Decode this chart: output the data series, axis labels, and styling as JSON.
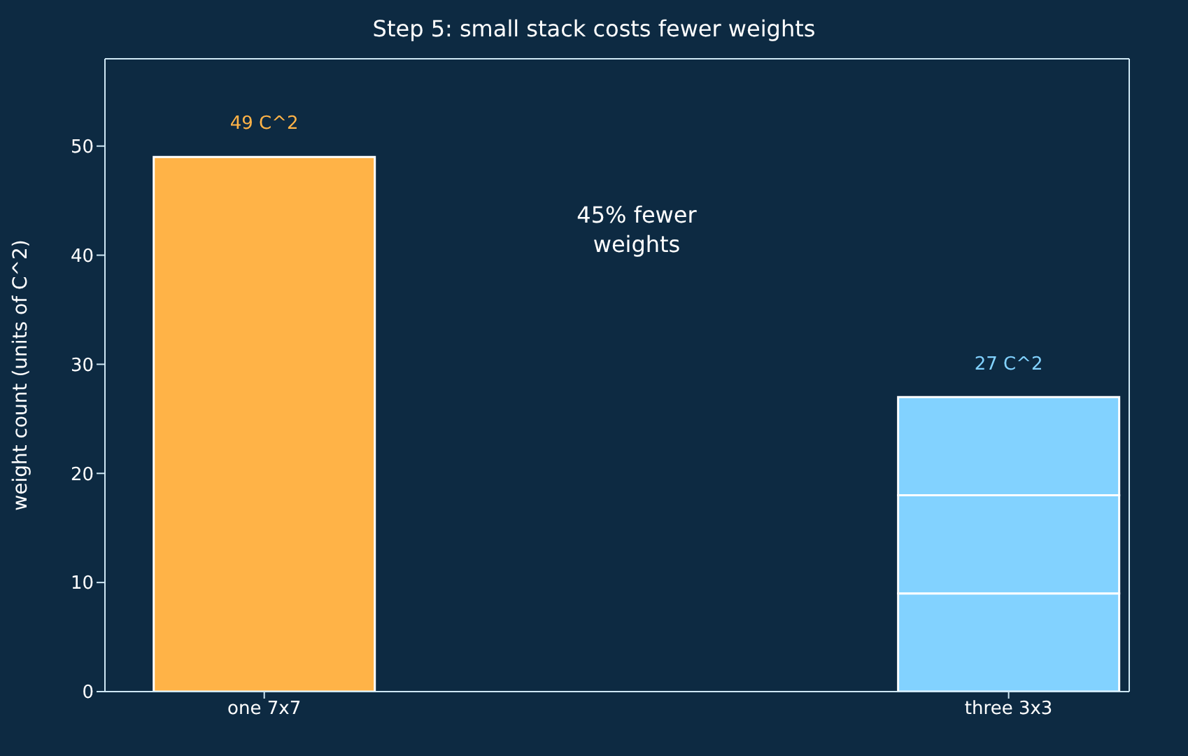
{
  "chart_data": {
    "type": "bar",
    "title": "Step 5: small stack costs fewer weights",
    "ylabel": "weight count (units of C^2)",
    "categories": [
      "one 7x7",
      "three 3x3"
    ],
    "stacked": true,
    "series": [
      {
        "colors": [
          "#ffb347",
          "#82d2ff"
        ],
        "values": [
          49,
          9
        ]
      },
      {
        "colors": [
          "#ffb347",
          "#82d2ff"
        ],
        "values": [
          null,
          9
        ]
      },
      {
        "colors": [
          "#ffb347",
          "#82d2ff"
        ],
        "values": [
          null,
          9
        ]
      }
    ],
    "totals": [
      "49 C^2",
      "27 C^2"
    ],
    "annotations": [
      "45% fewer\nweights"
    ],
    "ylim": [
      0,
      58
    ],
    "yticks": [
      0,
      10,
      20,
      30,
      40,
      50
    ]
  }
}
